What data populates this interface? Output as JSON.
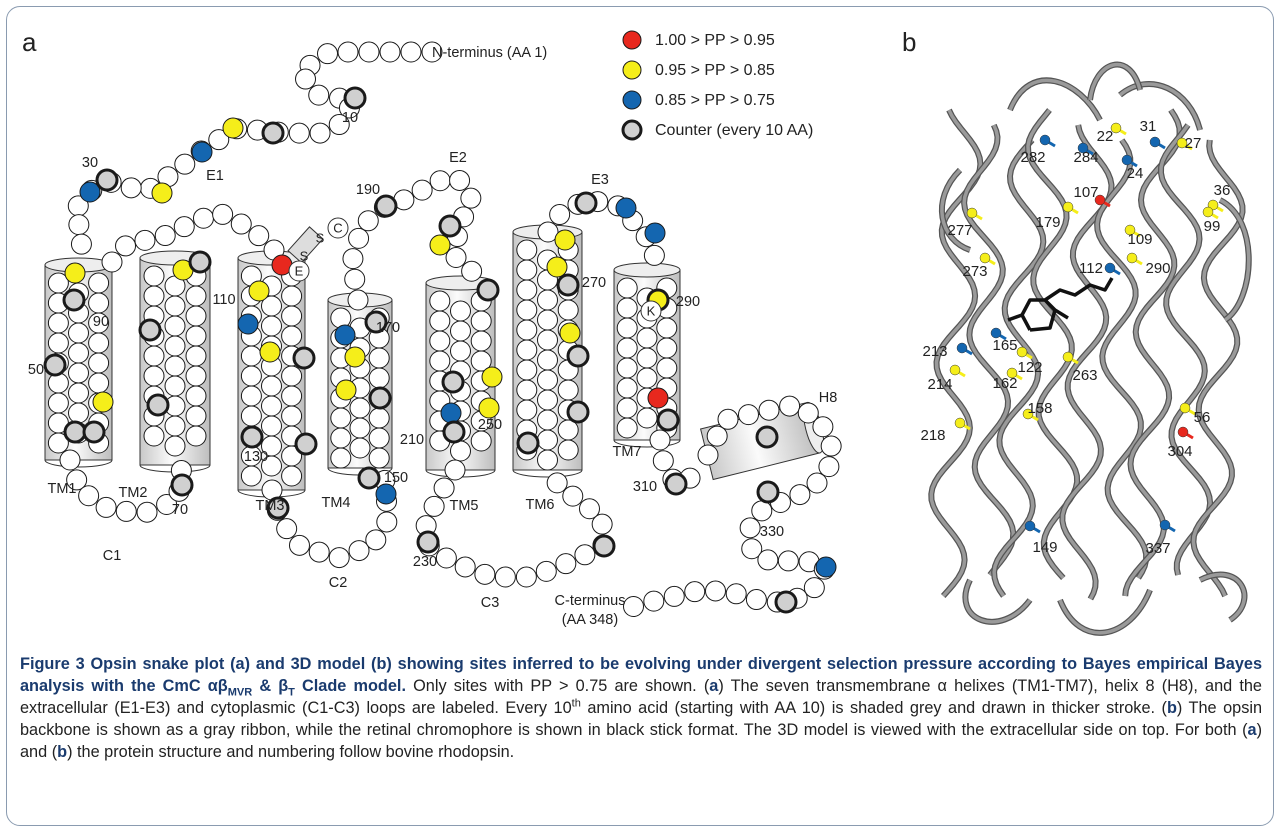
{
  "panel_a": {
    "label": "a",
    "legend": [
      "1.00 > PP > 0.95",
      "0.95 > PP > 0.85",
      "0.85 > PP > 0.75",
      "Counter (every 10 AA)"
    ],
    "labels": [
      "N-terminus (AA 1)",
      "10",
      "30",
      "E1",
      "E2",
      "190",
      "E3",
      "110",
      "90",
      "50",
      "170",
      "270",
      "290",
      "210",
      "250",
      "130",
      "TM1",
      "TM2",
      "70",
      "TM3",
      "TM4",
      "150",
      "TM5",
      "TM6",
      "TM7",
      "310",
      "H8",
      "330",
      "230",
      "C1",
      "C2",
      "C3",
      "C-terminus",
      "(AA 348)"
    ],
    "residue_letters": [
      "C",
      "S",
      "S",
      "E",
      "K"
    ]
  },
  "panel_b": {
    "label": "b",
    "residues": [
      "22",
      "31",
      "27",
      "282",
      "284",
      "24",
      "36",
      "107",
      "179",
      "99",
      "277",
      "109",
      "273",
      "112",
      "290",
      "213",
      "165",
      "122",
      "263",
      "214",
      "162",
      "56",
      "158",
      "218",
      "304",
      "149",
      "337"
    ]
  },
  "caption": [
    "Figure 3 Opsin snake plot (a) and 3D model (b) showing sites inferred to be evolving under divergent selection pressure according to Bayes empirical Bayes analysis with the CmC αβ",
    "MVR",
    " & β",
    "T",
    " Clade model.",
    " Only sites with PP > 0.75 are shown. (",
    "a",
    ") The seven transmembrane α helixes (TM1-TM7), helix 8 (H8), and the extracellular (E1-E3) and cytoplasmic (C1-C3) loops are labeled. Every 10",
    "th",
    " amino acid (starting with AA 10) is shaded grey and drawn in thicker stroke. (",
    "b",
    ") The opsin backbone is shown as a gray ribbon, while the retinal chromophore is shown in black stick format. The 3D model is viewed with the extracellular side on top. For both (",
    "a",
    ") and (",
    "b",
    ") the protein structure and numbering follow bovine rhodopsin."
  ]
}
